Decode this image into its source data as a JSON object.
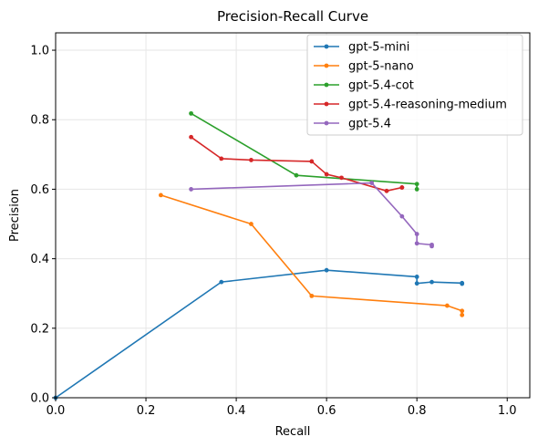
{
  "chart_data": {
    "type": "line",
    "title": "Precision-Recall Curve",
    "xlabel": "Recall",
    "ylabel": "Precision",
    "xlim": [
      0.0,
      1.05
    ],
    "ylim": [
      0.0,
      1.05
    ],
    "xticks": [
      "0.0",
      "0.2",
      "0.4",
      "0.6",
      "0.8",
      "1.0"
    ],
    "yticks": [
      "0.0",
      "0.2",
      "0.4",
      "0.6",
      "0.8",
      "1.0"
    ],
    "grid": true,
    "legend_position": "top-right",
    "series": [
      {
        "name": "gpt-5-mini",
        "color": "#1f77b4",
        "points": [
          [
            0.0,
            0.0
          ],
          [
            0.367,
            0.333
          ],
          [
            0.6,
            0.367
          ],
          [
            0.8,
            0.348
          ],
          [
            0.8,
            0.329
          ],
          [
            0.833,
            0.333
          ],
          [
            0.9,
            0.33
          ],
          [
            0.9,
            0.328
          ]
        ]
      },
      {
        "name": "gpt-5-nano",
        "color": "#ff7f0e",
        "points": [
          [
            0.233,
            0.583
          ],
          [
            0.433,
            0.5
          ],
          [
            0.567,
            0.293
          ],
          [
            0.867,
            0.265
          ],
          [
            0.9,
            0.25
          ],
          [
            0.9,
            0.238
          ]
        ]
      },
      {
        "name": "gpt-5.4-cot",
        "color": "#2ca02c",
        "points": [
          [
            0.3,
            0.818
          ],
          [
            0.533,
            0.64
          ],
          [
            0.8,
            0.615
          ],
          [
            0.8,
            0.6
          ]
        ]
      },
      {
        "name": "gpt-5.4-reasoning-medium",
        "color": "#d62728",
        "points": [
          [
            0.3,
            0.75
          ],
          [
            0.367,
            0.688
          ],
          [
            0.433,
            0.684
          ],
          [
            0.567,
            0.68
          ],
          [
            0.6,
            0.643
          ],
          [
            0.633,
            0.633
          ],
          [
            0.733,
            0.595
          ],
          [
            0.767,
            0.605
          ],
          [
            0.767,
            0.605
          ]
        ]
      },
      {
        "name": "gpt-5.4",
        "color": "#9467bd",
        "points": [
          [
            0.3,
            0.6
          ],
          [
            0.7,
            0.618
          ],
          [
            0.767,
            0.522
          ],
          [
            0.8,
            0.471
          ],
          [
            0.8,
            0.444
          ],
          [
            0.833,
            0.44
          ],
          [
            0.833,
            0.436
          ]
        ]
      }
    ]
  }
}
